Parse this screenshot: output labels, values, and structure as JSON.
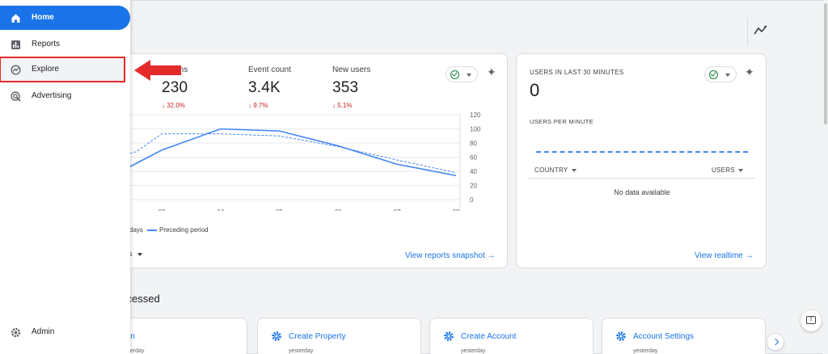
{
  "sidebar": {
    "items": [
      {
        "label": "Home",
        "icon": "home-icon",
        "active": true
      },
      {
        "label": "Reports",
        "icon": "bar-chart-icon",
        "active": false
      },
      {
        "label": "Explore",
        "icon": "explore-icon",
        "active": false,
        "highlighted": true
      },
      {
        "label": "Advertising",
        "icon": "advertising-icon",
        "active": false
      }
    ],
    "admin_label": "Admin"
  },
  "overview": {
    "metrics": [
      {
        "label": "ersions",
        "value": "230",
        "delta": "32.0%"
      },
      {
        "label": "Event count",
        "value": "3.4K",
        "delta": "9.7%"
      },
      {
        "label": "New users",
        "value": "353",
        "delta": "5.1%"
      }
    ],
    "legend_current": "days",
    "legend_previous": "Preceding period",
    "range_label": "s",
    "view_link": "View reports snapshot"
  },
  "realtime": {
    "title": "USERS IN LAST 30 MINUTES",
    "value": "0",
    "per_minute_label": "USERS PER MINUTE",
    "col_country": "COUNTRY",
    "col_users": "USERS",
    "empty_text": "No data available",
    "view_link": "View realtime"
  },
  "recent": {
    "title": "ccessed",
    "items": [
      {
        "title": "in",
        "sub": "terday"
      },
      {
        "title": "Create Property",
        "sub": "yesterday"
      },
      {
        "title": "Create Account",
        "sub": "yesterday"
      },
      {
        "title": "Account Settings",
        "sub": "yesterday"
      }
    ]
  },
  "colors": {
    "accent": "#1a73e8",
    "line": "#4285f4",
    "delta_down": "#c5221f",
    "highlight_box": "#e52a2a"
  },
  "chart_data": {
    "type": "line",
    "x": [
      "03",
      "04",
      "05",
      "06",
      "07",
      "08"
    ],
    "series": [
      {
        "name": "days",
        "style": "solid",
        "values": [
          70,
          100,
          97,
          76,
          50,
          34
        ]
      },
      {
        "name": "Preceding period",
        "style": "dashed",
        "values": [
          93,
          93,
          90,
          75,
          56,
          38
        ]
      }
    ],
    "y_ticks": [
      0,
      20,
      40,
      60,
      80,
      100,
      120
    ],
    "ylim": [
      0,
      120
    ],
    "grid": true
  }
}
